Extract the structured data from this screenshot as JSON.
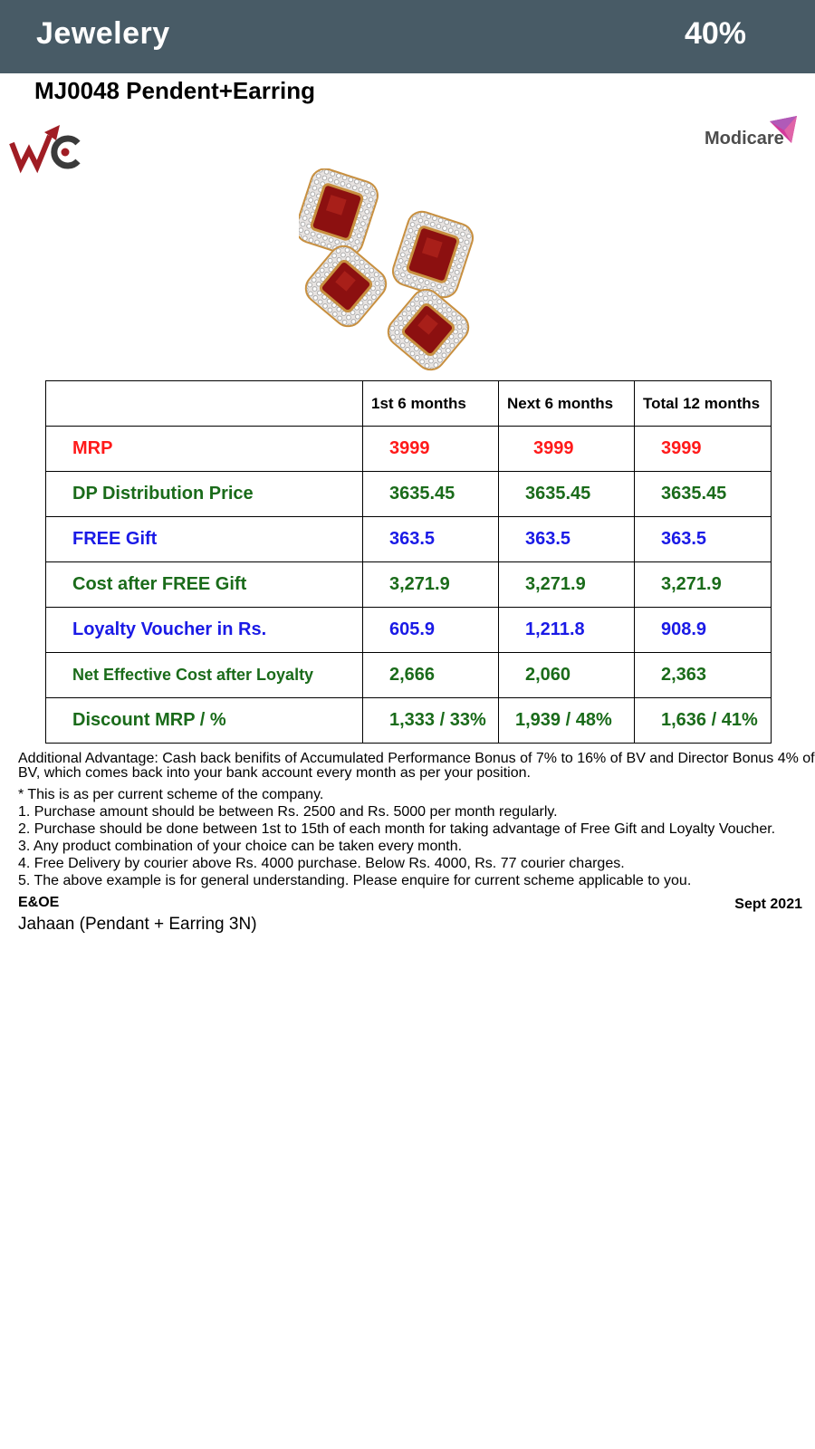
{
  "header": {
    "category": "Jewelery",
    "discount": "40%"
  },
  "product": {
    "title": "MJ0048 Pendent+Earring",
    "name": "Jahaan (Pendant + Earring 3N)"
  },
  "logos": {
    "left": "WC",
    "right": "Modicare"
  },
  "colors": {
    "header_bg": "#485b66",
    "red": "#ff1a1a",
    "green": "#1a6b1a",
    "blue": "#1a1ae6",
    "ruby": "#8c1010",
    "gold": "#c89040"
  },
  "table": {
    "headers": [
      "",
      "1st 6 months",
      "Next 6 months",
      "Total 12 months"
    ],
    "rows": [
      {
        "label": "MRP",
        "values": [
          "3999",
          "3999",
          "3999"
        ],
        "color": "#ff1a1a"
      },
      {
        "label": "DP Distribution Price",
        "values": [
          "3635.45",
          "3635.45",
          "3635.45"
        ],
        "color": "#1a6b1a"
      },
      {
        "label": "FREE Gift",
        "values": [
          "363.5",
          "363.5",
          "363.5"
        ],
        "color": "#1a1ae6"
      },
      {
        "label": "Cost after FREE Gift",
        "values": [
          "3,271.9",
          "3,271.9",
          "3,271.9"
        ],
        "color": "#1a6b1a"
      },
      {
        "label": "Loyalty Voucher in Rs.",
        "values": [
          "605.9",
          "1,211.8",
          "908.9"
        ],
        "color": "#1a1ae6"
      },
      {
        "label": "Net Effective Cost after Loyalty",
        "values": [
          "2,666",
          "2,060",
          "2,363"
        ],
        "color": "#1a6b1a"
      },
      {
        "label": "Discount MRP / %",
        "values": [
          "1,333 / 33%",
          "1,939 / 48%",
          "1,636 / 41%"
        ],
        "color": "#1a6b1a"
      }
    ]
  },
  "notes": {
    "advantage": "Additional Advantage: Cash back benifits of Accumulated Performance Bonus of 7% to 16% of BV and Director Bonus 4% of BV, which comes back into your bank account every month as per your position.",
    "scheme": "* This is as per current scheme of the company.",
    "list": [
      "1. Purchase amount should be between Rs. 2500 and Rs. 5000 per month regularly.",
      "2. Purchase should be done between 1st to 15th of each month for taking advantage of Free Gift and Loyalty Voucher.",
      "3. Any product combination of your choice can be taken every month.",
      "4. Free Delivery by courier above Rs. 4000 purchase. Below Rs. 4000, Rs. 77 courier charges.",
      "5. The above example is for general understanding. Please enquire for current scheme applicable to you."
    ]
  },
  "footer": {
    "eoe": "E&OE",
    "date": "Sept 2021"
  }
}
